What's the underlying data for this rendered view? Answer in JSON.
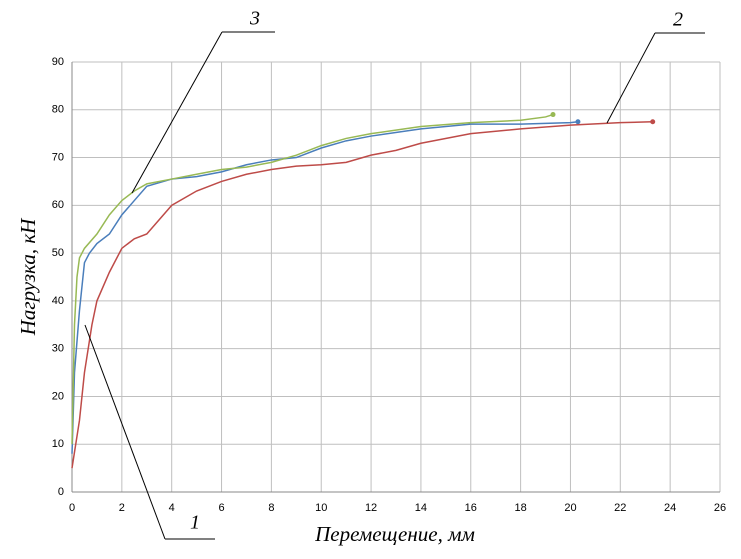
{
  "chart_data": {
    "type": "line",
    "x_label": "Перемещение, мм",
    "y_label": "Нагрузка, кН",
    "xlim": [
      0,
      26
    ],
    "ylim": [
      0,
      90
    ],
    "xticks": [
      0,
      2,
      4,
      6,
      8,
      10,
      12,
      14,
      16,
      18,
      20,
      22,
      24,
      26
    ],
    "yticks": [
      0,
      10,
      20,
      30,
      40,
      50,
      60,
      70,
      80,
      90
    ],
    "grid": true,
    "series": [
      {
        "name": "1",
        "color": "#4a7ebb",
        "x": [
          0,
          0.1,
          0.3,
          0.5,
          0.7,
          1,
          1.5,
          2,
          2.5,
          3,
          4,
          5,
          6,
          7,
          8,
          9,
          10,
          11,
          12,
          14,
          16,
          18,
          20,
          20.3
        ],
        "values": [
          8,
          25,
          38,
          48,
          50,
          52,
          54,
          58,
          61,
          64,
          65.5,
          66,
          67,
          68.5,
          69.5,
          70,
          72,
          73.5,
          74.5,
          76,
          77,
          77,
          77.3,
          77.5
        ]
      },
      {
        "name": "2",
        "color": "#be4b48",
        "x": [
          0,
          0.3,
          0.5,
          0.8,
          1,
          1.5,
          2,
          2.5,
          3,
          4,
          5,
          6,
          7,
          8,
          9,
          10,
          11,
          12,
          13,
          14,
          16,
          18,
          20,
          22,
          23.3
        ],
        "values": [
          5,
          15,
          25,
          35,
          40,
          46,
          51,
          53,
          54,
          60,
          63,
          65,
          66.5,
          67.5,
          68.2,
          68.5,
          69,
          70.5,
          71.5,
          73,
          75,
          76,
          76.8,
          77.3,
          77.5
        ]
      },
      {
        "name": "3",
        "color": "#98b954",
        "x": [
          0,
          0.1,
          0.2,
          0.3,
          0.5,
          1,
          1.5,
          2,
          2.5,
          3,
          4,
          5,
          6,
          7,
          8,
          9,
          10,
          11,
          12,
          14,
          16,
          18,
          19,
          19.3
        ],
        "values": [
          10,
          35,
          45,
          49,
          51,
          54,
          58,
          61,
          63,
          64.5,
          65.5,
          66.5,
          67.5,
          68,
          69,
          70.5,
          72.5,
          74,
          75,
          76.5,
          77.3,
          77.8,
          78.5,
          79
        ]
      }
    ]
  }
}
